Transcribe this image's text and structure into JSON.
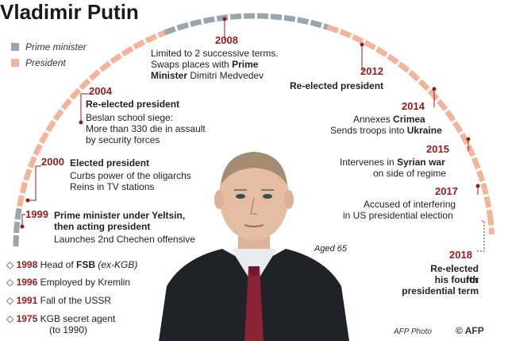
{
  "title": "Vladimir Putin",
  "legend": {
    "pm": "Prime minister",
    "president": "President"
  },
  "colors": {
    "pm": "#9aa6ad",
    "president": "#f2b59c",
    "year": "#9b1b1b",
    "connector": "#9b1b1b"
  },
  "timeline": [
    {
      "year": "1999",
      "lines": [
        "Prime minister under Yeltsin,",
        "then acting president",
        "Launches 2nd Chechen offensive"
      ]
    },
    {
      "year": "2000",
      "lines": [
        "Elected president",
        "Curbs power of the oligarchs",
        "Reins in TV stations"
      ]
    },
    {
      "year": "2004",
      "lines": [
        "Re-elected president",
        "Beslan school siege:",
        "More than 330 die in assault",
        "by security forces"
      ]
    },
    {
      "year": "2008",
      "lines": [
        "Limited to 2 successive terms.",
        "Swaps places with",
        "Prime",
        "Minister",
        "Dimitri Medvedev"
      ]
    },
    {
      "year": "2012",
      "lines": [
        "Re-elected president"
      ]
    },
    {
      "year": "2014",
      "lines": [
        "Annexes",
        "Crimea",
        "Sends troops into",
        "Ukraine"
      ]
    },
    {
      "year": "2015",
      "lines": [
        "Intervenes in",
        "Syrian war",
        "on side of regime"
      ]
    },
    {
      "year": "2017",
      "lines": [
        "Accused of interfering",
        "in US presidential election"
      ]
    },
    {
      "year": "2018",
      "lines": [
        "Re-elected for",
        "his fourth",
        "presidential term"
      ]
    }
  ],
  "early_events": [
    {
      "year": "1998",
      "pre": "Head of ",
      "bold": "FSB",
      "post": " (ex-KGB)"
    },
    {
      "year": "1996",
      "text": "Employed by Kremlin"
    },
    {
      "year": "1991",
      "text": "Fall of the USSR"
    },
    {
      "year": "1975",
      "text": "KGB secret agent",
      "text2": "(to 1990)"
    }
  ],
  "age": "Aged 65",
  "credit": "AFP Photo",
  "logo": "© AFP"
}
